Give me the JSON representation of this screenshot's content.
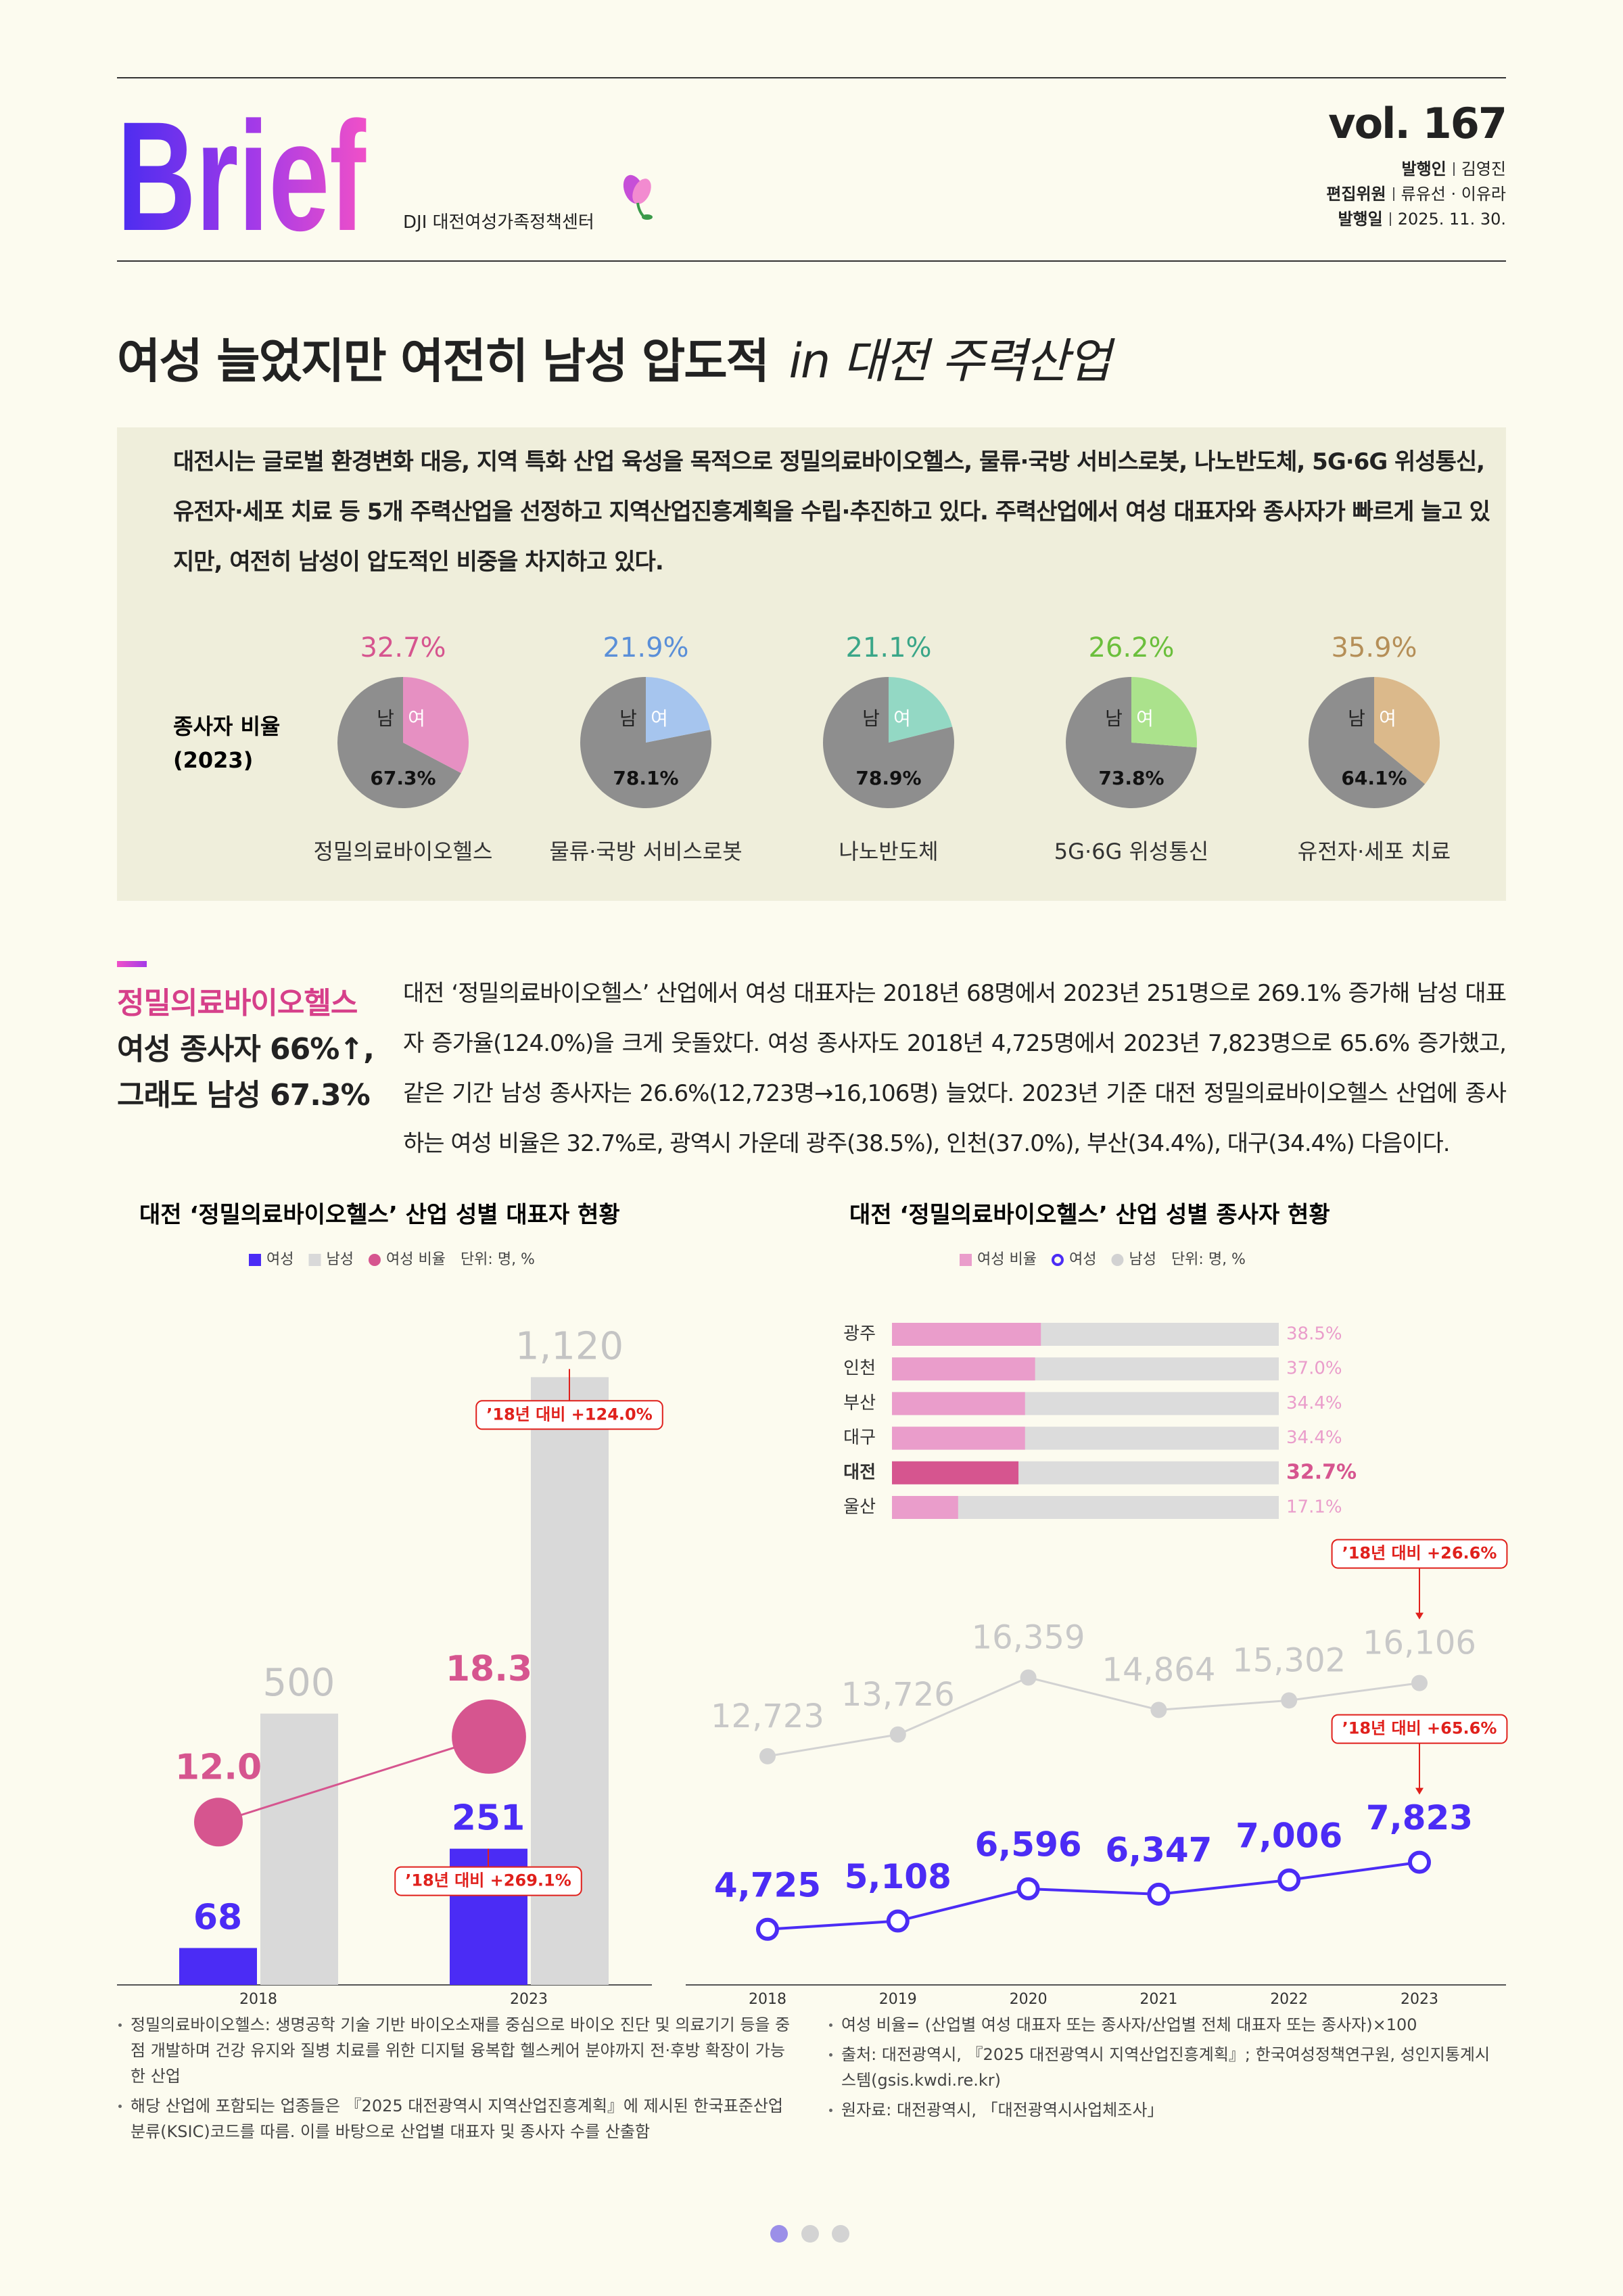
{
  "header": {
    "logo": "Brief",
    "org": "DJI 대전여성가족정책센터",
    "vol": "vol. 167",
    "credits": [
      {
        "label": "발행인",
        "value": "김영진"
      },
      {
        "label": "편집위원",
        "value": "류유선 · 이유라"
      },
      {
        "label": "발행일",
        "value": "2025. 11. 30."
      }
    ]
  },
  "headline": {
    "main": "여성 늘었지만 여전히 남성 압도적",
    "sub": "in 대전 주력산업"
  },
  "intro": "대전시는 글로벌 환경변화 대응, 지역 특화 산업 육성을 목적으로 정밀의료바이오헬스, 물류·국방 서비스로봇, 나노반도체, 5G·6G 위성통신, 유전자·세포 치료 등 5개 주력산업을 선정하고 지역산업진흥계획을 수립·추진하고 있다. 주력산업에서 여성 대표자와 종사자가 빠르게 늘고 있지만, 여전히 남성이 압도적인 비중을 차지하고 있다.",
  "section": {
    "heading": [
      "정밀의료바이오헬스",
      "여성 종사자 66%↑,",
      "그래도 남성 67.3%"
    ],
    "body": "대전 ‘정밀의료바이오헬스’ 산업에서 여성 대표자는 2018년 68명에서 2023년 251명으로 269.1% 증가해 남성 대표자 증가율(124.0%)을 크게 웃돌았다. 여성 종사자도 2018년 4,725명에서 2023년 7,823명으로 65.6% 증가했고, 같은 기간 남성 종사자는 26.6%(12,723명→16,106명) 늘었다. 2023년 기준 대전 정밀의료바이오헬스 산업에 종사하는 여성 비율은 32.7%로, 광역시 가운데 광주(38.5%), 인천(37.0%), 부산(34.4%), 대구(34.4%) 다음이다."
  },
  "chart_data": [
    {
      "type": "pie",
      "row_label": [
        "종사자 비율",
        "(2023)"
      ],
      "labels": [
        "남",
        "여"
      ],
      "male_color": "#8e8e8e",
      "pies": [
        {
          "name": "정밀의료바이오헬스",
          "color": "#e690c2",
          "label_color": "#d6558f",
          "values": [
            67.3,
            32.7
          ],
          "value_labels": [
            "67.3%",
            "32.7%"
          ]
        },
        {
          "name": "물류·국방 서비스로봇",
          "color": "#a6c5ee",
          "label_color": "#5a8fd8",
          "values": [
            78.1,
            21.9
          ],
          "value_labels": [
            "78.1%",
            "21.9%"
          ]
        },
        {
          "name": "나노반도체",
          "color": "#93d8c4",
          "label_color": "#3aa688",
          "values": [
            78.9,
            21.1
          ],
          "value_labels": [
            "78.9%",
            "21.1%"
          ]
        },
        {
          "name": "5G·6G 위성통신",
          "color": "#abe28c",
          "label_color": "#6bbf3c",
          "values": [
            73.8,
            26.2
          ],
          "value_labels": [
            "73.8%",
            "26.2%"
          ]
        },
        {
          "name": "유전자·세포 치료",
          "color": "#dbb98b",
          "label_color": "#b58f58",
          "values": [
            64.1,
            35.9
          ],
          "value_labels": [
            "64.1%",
            "35.9%"
          ]
        }
      ]
    },
    {
      "type": "bar",
      "title": "대전 ‘정밀의료바이오헬스’ 산업 성별 대표자 현황",
      "unit": "단위: 명, %",
      "categories": [
        "2018",
        "2023"
      ],
      "ylim": [
        0,
        1250
      ],
      "y2lim": [
        0,
        50
      ],
      "series": [
        {
          "name": "여성",
          "marker": "square",
          "color": "#4b2cf5",
          "values": [
            68,
            251
          ],
          "annotation": "’18년 대비 +269.1%"
        },
        {
          "name": "남성",
          "marker": "square",
          "color": "#d9d9d9",
          "values": [
            500,
            1120
          ],
          "value_labels": [
            "500",
            "1,120"
          ],
          "annotation": "’18년 대비 +124.0%"
        },
        {
          "name": "여성 비율",
          "marker": "circle",
          "axis": "y2",
          "color": "#d6558f",
          "values": [
            12.0,
            18.3
          ],
          "value_labels": [
            "12.0",
            "18.3"
          ]
        }
      ]
    },
    {
      "type": "bar",
      "orientation": "horizontal",
      "title": "대전 ‘정밀의료바이오헬스’ 산업 성별 종사자 현황",
      "categories": [
        "광주",
        "인천",
        "부산",
        "대구",
        "대전",
        "울산"
      ],
      "xlim": [
        0,
        100
      ],
      "highlight_index": 4,
      "highlight_color": "#d6558f",
      "track_color": "#dcdcdc",
      "series": [
        {
          "name": "여성 비율",
          "marker": "square",
          "color": "#ea9dcb",
          "values": [
            38.5,
            37.0,
            34.4,
            34.4,
            32.7,
            17.1
          ],
          "value_labels": [
            "38.5%",
            "37.0%",
            "34.4%",
            "34.4%",
            "32.7%",
            "17.1%"
          ]
        }
      ]
    },
    {
      "type": "line",
      "unit": "단위: 명, %",
      "x": [
        "2018",
        "2019",
        "2020",
        "2021",
        "2022",
        "2023"
      ],
      "ylim": [
        2000,
        18000
      ],
      "series": [
        {
          "name": "여성",
          "marker": "ring",
          "color": "#4b2cf5",
          "values": [
            4725,
            5108,
            6596,
            6347,
            7006,
            7823
          ],
          "value_labels": [
            "4,725",
            "5,108",
            "6,596",
            "6,347",
            "7,006",
            "7,823"
          ],
          "annotation": "’18년 대비 +65.6%"
        },
        {
          "name": "남성",
          "marker": "circle",
          "color": "#d2d2d2",
          "values": [
            12723,
            13726,
            16359,
            14864,
            15302,
            16106
          ],
          "value_labels": [
            "12,723",
            "13,726",
            "16,359",
            "14,864",
            "15,302",
            "16,106"
          ],
          "annotation": "’18년 대비 +26.6%"
        }
      ]
    }
  ],
  "footnotes": {
    "left": [
      "정밀의료바이오헬스: 생명공학 기술 기반 바이오소재를 중심으로 바이오 진단 및 의료기기 등을 중점 개발하며 건강 유지와 질병 치료를 위한 디지털 융복합 헬스케어 분야까지 전·후방 확장이 가능한 산업",
      "해당 산업에 포함되는 업종들은 『2025 대전광역시 지역산업진흥계획』에 제시된 한국표준산업분류(KSIC)코드를 따름. 이를 바탕으로 산업별 대표자 및 종사자 수를 산출함"
    ],
    "right": [
      "여성 비율= (산업별 여성 대표자 또는 종사자/산업별 전체 대표자 또는 종사자)×100",
      "출처: 대전광역시, 『2025 대전광역시 지역산업진흥계획』; 한국여성정책연구원, 성인지통계시스템(gsis.kwdi.re.kr)",
      "원자료: 대전광역시, 「대전광역시사업체조사」"
    ]
  }
}
